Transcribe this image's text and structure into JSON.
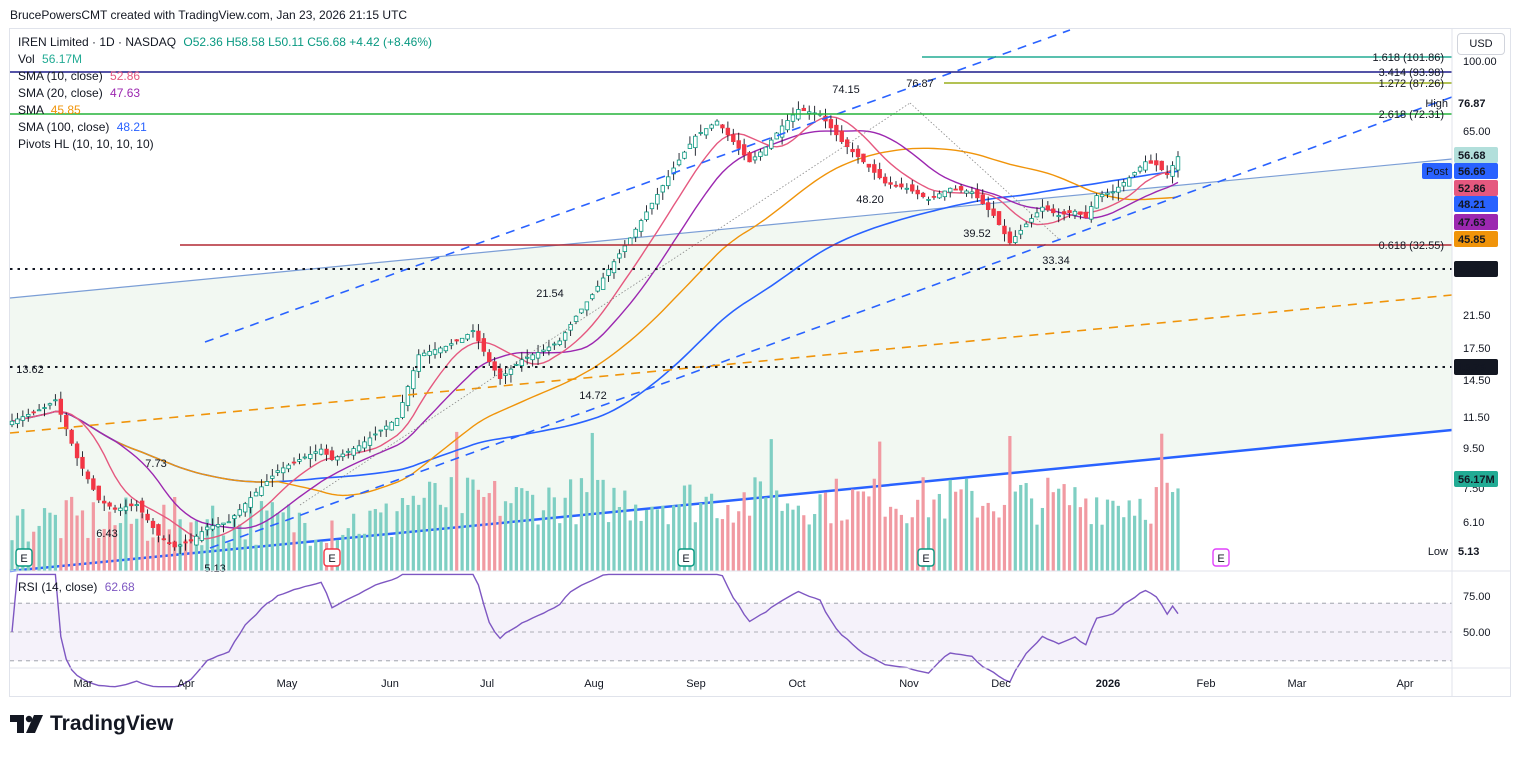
{
  "header": {
    "credit": "BrucePowersCMT created with TradingView.com, Jan 23, 2026 21:15 UTC"
  },
  "currency_button": "USD",
  "brand": "TradingView",
  "legend": {
    "symbol": "IREN Limited · 1D · NASDAQ",
    "ohlc": "O52.36 H58.58 L50.11 C56.68 +4.42 (+8.46%)",
    "vol_label": "Vol",
    "vol_value": "56.17M",
    "sma10_label": "SMA (10, close)",
    "sma10_value": "52.86",
    "sma20_label": "SMA (20, close)",
    "sma20_value": "47.63",
    "sma50_label": "SMA",
    "sma50_value": "45.85",
    "sma100_label": "SMA (100, close)",
    "sma100_value": "48.21",
    "pivots_label": "Pivots HL (10, 10, 10, 10)",
    "rsi_label": "RSI (14, close)",
    "rsi_value": "62.68"
  },
  "colors": {
    "sma10": "#e5587f",
    "sma20": "#9c27b0",
    "sma50": "#f0940a",
    "sma100": "#2962ff",
    "up": "#089981",
    "down": "#f23645",
    "vol_up": "#7fcfc3",
    "vol_down": "#f19aa2",
    "channel": "#2962ff",
    "fib_green": "#22ab94",
    "fib_lime": "#9aad1b",
    "fib_navy": "#1b1a8a",
    "fib_green2": "#25b33a",
    "fib_red": "#b22833",
    "rsi": "#7e57c2"
  },
  "chart_data": {
    "type": "candlestick",
    "symbol": "IREN",
    "interval": "1D",
    "ylim": [
      5,
      110
    ],
    "y_ticks": [
      "100.00",
      "65.00",
      "21.50",
      "17.50",
      "14.50",
      "11.50",
      "9.50",
      "7.50",
      "6.10"
    ],
    "x_ticks": [
      "Mar",
      "Apr",
      "May",
      "Jun",
      "Jul",
      "Aug",
      "Sep",
      "Oct",
      "Nov",
      "Dec",
      "2026",
      "Feb",
      "Mar",
      "Apr"
    ],
    "last": {
      "open": 52.36,
      "high": 58.58,
      "low": 50.11,
      "close": 56.68,
      "change": 4.42,
      "change_pct": 8.46,
      "volume": "56.17M"
    },
    "pivot_labels": [
      "13.62",
      "7.73",
      "6.43",
      "5.13",
      "21.54",
      "14.72",
      "74.15",
      "76.87",
      "48.20",
      "39.52",
      "33.34"
    ],
    "price_labels": [
      {
        "text": "High",
        "value": "76.87"
      },
      {
        "text": "",
        "value": "56.68"
      },
      {
        "text": "Post",
        "value": "56.66"
      },
      {
        "text": "",
        "value": "52.86"
      },
      {
        "text": "",
        "value": "48.21"
      },
      {
        "text": "",
        "value": "47.63"
      },
      {
        "text": "",
        "value": "45.85"
      },
      {
        "text": "",
        "value": "28.25"
      },
      {
        "text": "",
        "value": "15.75"
      },
      {
        "text": "",
        "value": "56.17M"
      },
      {
        "text": "Low",
        "value": "5.13"
      }
    ],
    "fib_levels": [
      {
        "label": "1.618 (101.86)",
        "value": 101.86
      },
      {
        "label": "3.414 (93.98)",
        "value": 93.98
      },
      {
        "label": "1.272 (87.26)",
        "value": 87.26
      },
      {
        "label": "2.618 (72.31)",
        "value": 72.31
      },
      {
        "label": "0.618 (32.55)",
        "value": 32.55
      }
    ],
    "horizontal_levels": [
      28.25,
      15.75
    ],
    "rsi": {
      "period": 14,
      "value": 62.68,
      "ticks": [
        "75.00",
        "50.00"
      ],
      "upper": 70,
      "lower": 30
    },
    "events": [
      "E",
      "E",
      "E",
      "E",
      "E"
    ]
  }
}
